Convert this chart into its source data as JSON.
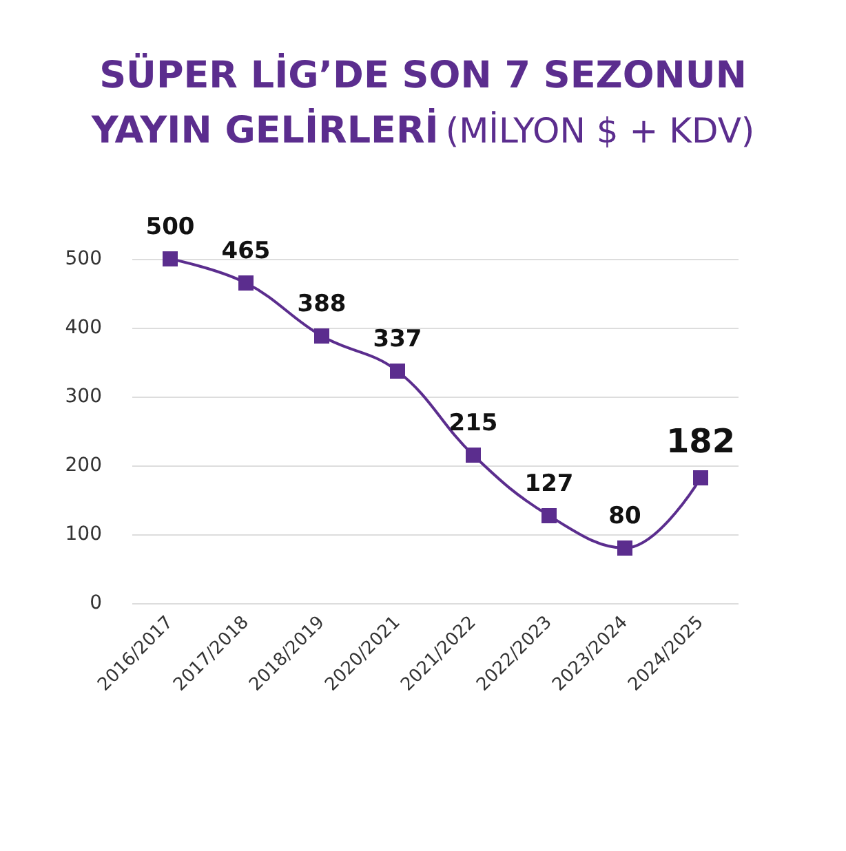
{
  "chart_data": {
    "type": "line",
    "title": "SÜPER LİG’DE SON 7 SEZONUN YAYIN GELİRLERİ",
    "subtitle": "(MİLYON $ + KDV)",
    "categories": [
      "2016/2017",
      "2017/2018",
      "2018/2019",
      "2020/2021",
      "2021/2022",
      "2022/2023",
      "2023/2024",
      "2024/2025"
    ],
    "series": [
      {
        "color": "#5b2d8e",
        "values": [
          500,
          465,
          388,
          337,
          215,
          127,
          80,
          182
        ]
      }
    ],
    "ylim": [
      0,
      500
    ],
    "yticks": [
      0,
      100,
      200,
      300,
      400,
      500
    ],
    "grid": "y",
    "marker": "square",
    "line_style": "solid",
    "data_labels": true
  }
}
